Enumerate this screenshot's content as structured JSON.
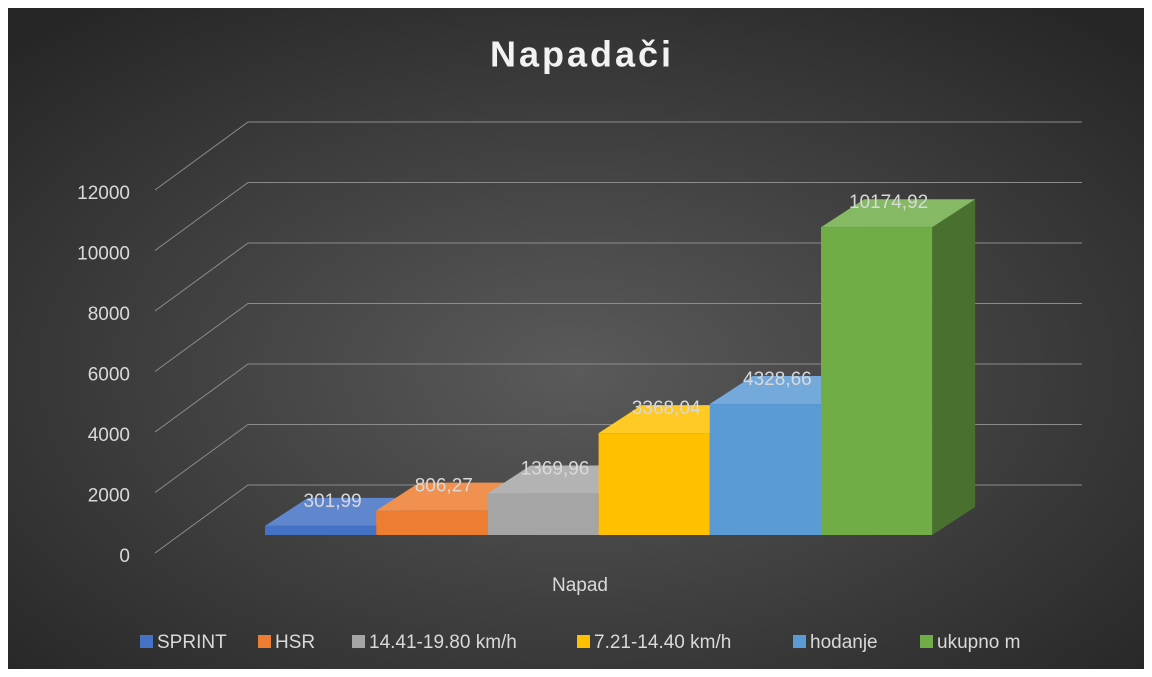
{
  "chart_data": {
    "type": "bar3d",
    "title": "Napadači",
    "x_label": "Napad",
    "categories": [
      "Napad"
    ],
    "series": [
      {
        "name": "SPRINT",
        "color": "#4472c4",
        "values": [
          301.99
        ],
        "value_labels": [
          "301,99"
        ]
      },
      {
        "name": "HSR",
        "color": "#ed7d31",
        "values": [
          806.27
        ],
        "value_labels": [
          "806,27"
        ]
      },
      {
        "name": "14.41-19.80 km/h",
        "color": "#a5a5a5",
        "values": [
          1369.96
        ],
        "value_labels": [
          "1369,96"
        ]
      },
      {
        "name": "7.21-14.40 km/h",
        "color": "#ffc000",
        "values": [
          3368.04
        ],
        "value_labels": [
          "3368,04"
        ]
      },
      {
        "name": "hodanje",
        "color": "#5b9bd5",
        "values": [
          4328.66
        ],
        "value_labels": [
          "4328,66"
        ]
      },
      {
        "name": "ukupno m",
        "color": "#70ad47",
        "values": [
          10174.92
        ],
        "value_labels": [
          "10174,92"
        ]
      }
    ],
    "ylim": [
      0,
      12000
    ],
    "yticks": [
      0,
      2000,
      4000,
      6000,
      8000,
      10000,
      12000
    ],
    "grid": true,
    "legend": "bottom"
  }
}
